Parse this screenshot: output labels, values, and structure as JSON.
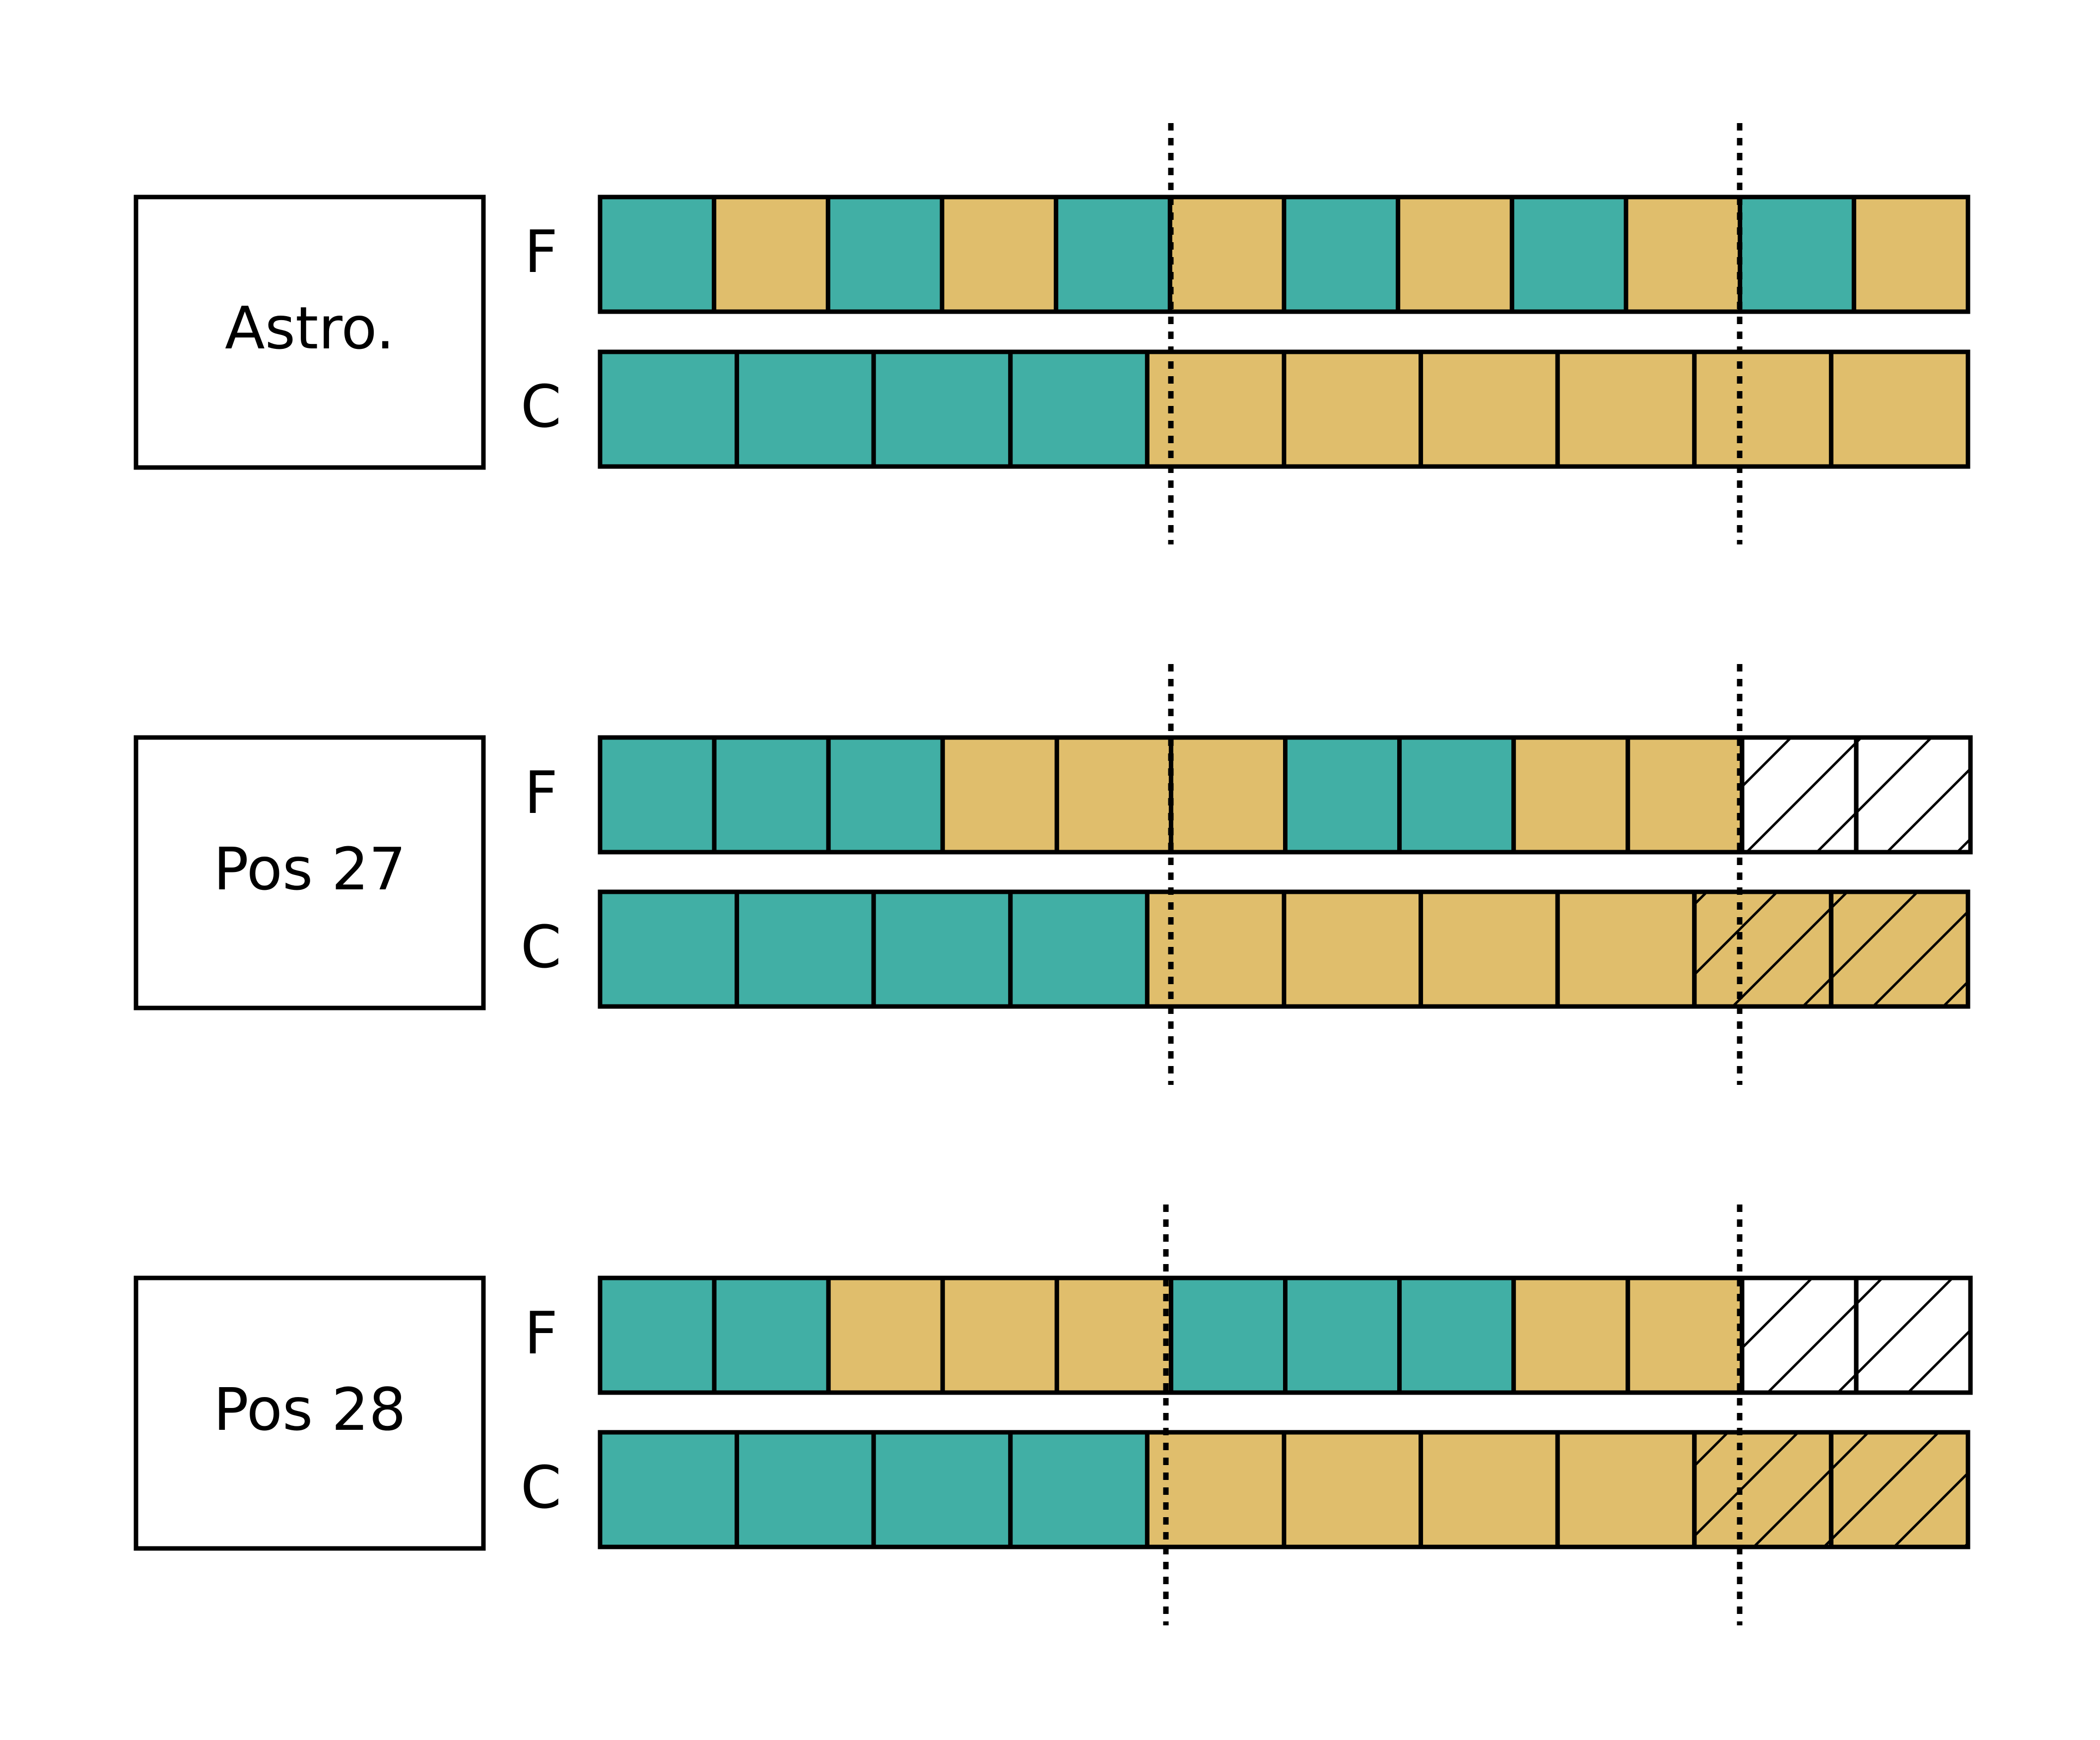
{
  "colors": {
    "teal": "#41AFA5",
    "gold": "#E0BE6C",
    "white": "#FFFFFF",
    "stroke": "#000000"
  },
  "panels": [
    {
      "label": "Astro.",
      "rows": [
        {
          "name": "F",
          "cells": [
            "teal",
            "gold",
            "teal",
            "gold",
            "teal",
            "gold",
            "teal",
            "gold",
            "teal",
            "gold",
            "teal",
            "gold"
          ],
          "hatch": [
            false,
            false,
            false,
            false,
            false,
            false,
            false,
            false,
            false,
            false,
            false,
            false
          ]
        },
        {
          "name": "C",
          "cells": [
            "teal",
            "teal",
            "teal",
            "teal",
            "gold",
            "gold",
            "gold",
            "gold",
            "gold",
            "gold"
          ],
          "hatch": [
            false,
            false,
            false,
            false,
            false,
            false,
            false,
            false,
            false,
            false
          ]
        }
      ]
    },
    {
      "label": "Pos 27",
      "rows": [
        {
          "name": "F",
          "cells": [
            "teal",
            "teal",
            "teal",
            "gold",
            "gold",
            "gold",
            "teal",
            "teal",
            "gold",
            "gold",
            "white",
            "white"
          ],
          "hatch": [
            false,
            false,
            false,
            false,
            false,
            false,
            false,
            false,
            false,
            false,
            true,
            true
          ]
        },
        {
          "name": "C",
          "cells": [
            "teal",
            "teal",
            "teal",
            "teal",
            "gold",
            "gold",
            "gold",
            "gold",
            "gold",
            "gold"
          ],
          "hatch": [
            false,
            false,
            false,
            false,
            false,
            false,
            false,
            false,
            true,
            true
          ]
        }
      ]
    },
    {
      "label": "Pos 28",
      "rows": [
        {
          "name": "F",
          "cells": [
            "teal",
            "teal",
            "gold",
            "gold",
            "gold",
            "teal",
            "teal",
            "teal",
            "gold",
            "gold",
            "white",
            "white"
          ],
          "hatch": [
            false,
            false,
            false,
            false,
            false,
            false,
            false,
            false,
            false,
            false,
            true,
            true
          ]
        },
        {
          "name": "C",
          "cells": [
            "teal",
            "teal",
            "teal",
            "teal",
            "gold",
            "gold",
            "gold",
            "gold",
            "gold",
            "gold"
          ],
          "hatch": [
            false,
            false,
            false,
            false,
            false,
            false,
            false,
            false,
            true,
            true
          ]
        }
      ]
    }
  ]
}
